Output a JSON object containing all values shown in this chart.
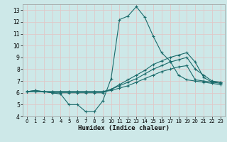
{
  "xlabel": "Humidex (Indice chaleur)",
  "xlim": [
    -0.5,
    23.5
  ],
  "ylim": [
    4,
    13.5
  ],
  "yticks": [
    4,
    5,
    6,
    7,
    8,
    9,
    10,
    11,
    12,
    13
  ],
  "xticks": [
    0,
    1,
    2,
    3,
    4,
    5,
    6,
    7,
    8,
    9,
    10,
    11,
    12,
    13,
    14,
    15,
    16,
    17,
    18,
    19,
    20,
    21,
    22,
    23
  ],
  "bg_color": "#cde8e8",
  "line_color": "#1a6b6b",
  "grid_color": "#e0c8c8",
  "lines": [
    {
      "x": [
        0,
        1,
        2,
        3,
        4,
        5,
        6,
        7,
        8,
        9,
        10,
        11,
        12,
        13,
        14,
        15,
        16,
        17,
        18,
        19,
        20,
        21,
        22,
        23
      ],
      "y": [
        6.1,
        6.2,
        6.1,
        6.0,
        5.9,
        5.0,
        5.0,
        4.4,
        4.4,
        5.3,
        7.2,
        12.2,
        12.5,
        13.3,
        12.4,
        10.8,
        9.4,
        8.7,
        7.5,
        7.1,
        7.0,
        6.9,
        6.8,
        6.7
      ]
    },
    {
      "x": [
        0,
        1,
        2,
        3,
        4,
        5,
        6,
        7,
        8,
        9,
        10,
        11,
        12,
        13,
        14,
        15,
        16,
        17,
        18,
        19,
        20,
        21,
        22,
        23
      ],
      "y": [
        6.1,
        6.2,
        6.1,
        6.0,
        6.0,
        6.0,
        6.0,
        6.0,
        6.0,
        6.0,
        6.3,
        6.7,
        7.1,
        7.5,
        7.9,
        8.4,
        8.7,
        9.0,
        9.2,
        9.4,
        8.6,
        7.3,
        6.9,
        6.9
      ]
    },
    {
      "x": [
        0,
        1,
        2,
        3,
        4,
        5,
        6,
        7,
        8,
        9,
        10,
        11,
        12,
        13,
        14,
        15,
        16,
        17,
        18,
        19,
        20,
        21,
        22,
        23
      ],
      "y": [
        6.1,
        6.1,
        6.1,
        6.1,
        6.1,
        6.1,
        6.1,
        6.1,
        6.1,
        6.1,
        6.3,
        6.6,
        6.9,
        7.2,
        7.6,
        8.0,
        8.3,
        8.6,
        8.8,
        9.0,
        8.0,
        7.5,
        7.0,
        6.9
      ]
    },
    {
      "x": [
        0,
        1,
        2,
        3,
        4,
        5,
        6,
        7,
        8,
        9,
        10,
        11,
        12,
        13,
        14,
        15,
        16,
        17,
        18,
        19,
        20,
        21,
        22,
        23
      ],
      "y": [
        6.1,
        6.1,
        6.1,
        6.1,
        6.1,
        6.1,
        6.1,
        6.1,
        6.1,
        6.1,
        6.2,
        6.4,
        6.6,
        6.9,
        7.2,
        7.5,
        7.8,
        8.0,
        8.2,
        8.3,
        7.1,
        7.0,
        6.9,
        6.8
      ]
    }
  ]
}
